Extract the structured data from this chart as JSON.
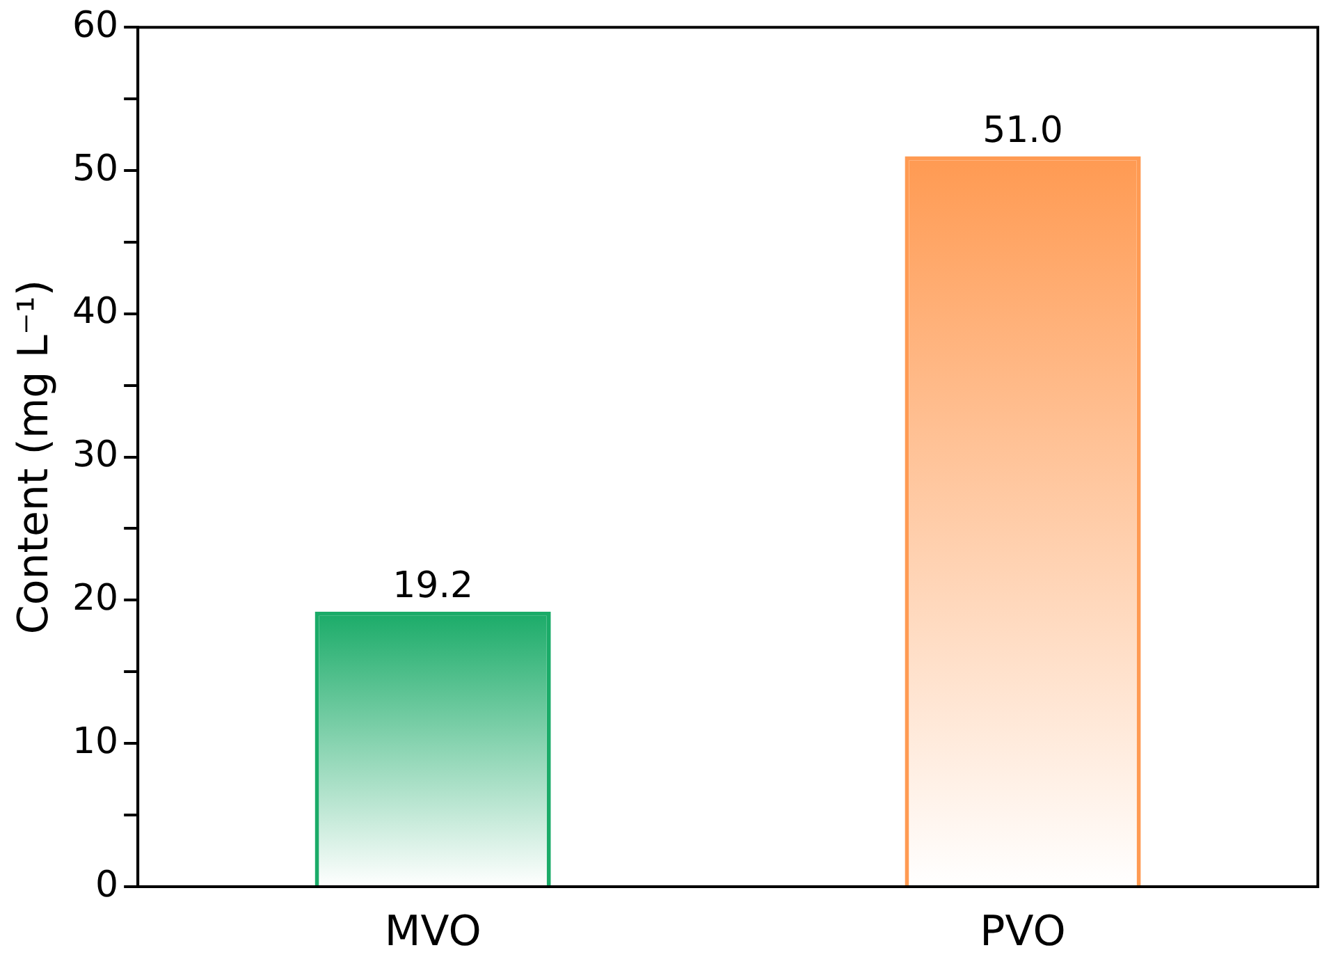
{
  "chart_data": {
    "type": "bar",
    "ylabel": "Content (mg L⁻¹)",
    "categories": [
      "MVO",
      "PVO"
    ],
    "values": [
      19.2,
      51.0
    ],
    "colors": [
      "#1aab68",
      "#ff9a52"
    ],
    "value_labels": [
      "19.2",
      "51.0"
    ],
    "ylim": [
      0,
      60
    ],
    "yticks": [
      0,
      {
        "value": 5,
        "label": null
      },
      10,
      {
        "value": 15,
        "label": null
      },
      20,
      {
        "value": 25,
        "label": null
      },
      30,
      {
        "value": 35,
        "label": null
      },
      40,
      {
        "value": 45,
        "label": null
      },
      50,
      {
        "value": 55,
        "label": null
      },
      60
    ],
    "grid": false,
    "legend": false
  }
}
